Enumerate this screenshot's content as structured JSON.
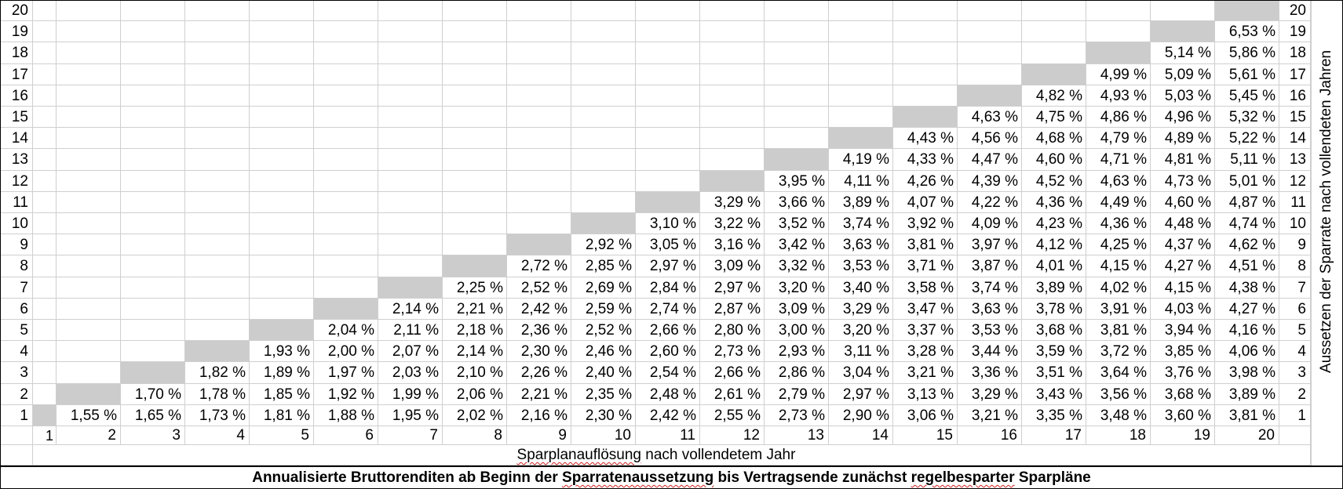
{
  "title_pre": "Annualisierte Bruttorenditen ab Beginn der ",
  "title_w1": "Sparratenaussetzung",
  "title_mid": " bis Vertragsende zunächst ",
  "title_w2": "regelbesparter",
  "title_post": " Sparpläne",
  "xlabel_pre": "",
  "xlabel_w": "Sparplanauflösung",
  "xlabel_post": " nach vollendetem Jahr",
  "ylabel": "Aussetzen der Sparrate nach vollendeten Jahren",
  "x_labels": [
    "1",
    "2",
    "3",
    "4",
    "5",
    "6",
    "7",
    "8",
    "9",
    "10",
    "11",
    "12",
    "13",
    "14",
    "15",
    "16",
    "17",
    "18",
    "19",
    "20"
  ],
  "row_labels": [
    "20",
    "19",
    "18",
    "17",
    "16",
    "15",
    "14",
    "13",
    "12",
    "11",
    "10",
    "9",
    "8",
    "7",
    "6",
    "5",
    "4",
    "3",
    "2",
    "1"
  ],
  "diagonal_color": "#cccccc",
  "rows": [
    {
      "row": "20",
      "values": []
    },
    {
      "row": "19",
      "values": [
        "6,53 %"
      ]
    },
    {
      "row": "18",
      "values": [
        "5,14 %",
        "5,86 %"
      ]
    },
    {
      "row": "17",
      "values": [
        "4,99 %",
        "5,09 %",
        "5,61 %"
      ]
    },
    {
      "row": "16",
      "values": [
        "4,82 %",
        "4,93 %",
        "5,03 %",
        "5,45 %"
      ]
    },
    {
      "row": "15",
      "values": [
        "4,63 %",
        "4,75 %",
        "4,86 %",
        "4,96 %",
        "5,32 %"
      ]
    },
    {
      "row": "14",
      "values": [
        "4,43 %",
        "4,56 %",
        "4,68 %",
        "4,79 %",
        "4,89 %",
        "5,22 %"
      ]
    },
    {
      "row": "13",
      "values": [
        "4,19 %",
        "4,33 %",
        "4,47 %",
        "4,60 %",
        "4,71 %",
        "4,81 %",
        "5,11 %"
      ]
    },
    {
      "row": "12",
      "values": [
        "3,95 %",
        "4,11 %",
        "4,26 %",
        "4,39 %",
        "4,52 %",
        "4,63 %",
        "4,73 %",
        "5,01 %"
      ]
    },
    {
      "row": "11",
      "values": [
        "3,29 %",
        "3,66 %",
        "3,89 %",
        "4,07 %",
        "4,22 %",
        "4,36 %",
        "4,49 %",
        "4,60 %",
        "4,87 %"
      ]
    },
    {
      "row": "10",
      "values": [
        "3,10 %",
        "3,22 %",
        "3,52 %",
        "3,74 %",
        "3,92 %",
        "4,09 %",
        "4,23 %",
        "4,36 %",
        "4,48 %",
        "4,74 %"
      ]
    },
    {
      "row": "9",
      "values": [
        "2,92 %",
        "3,05 %",
        "3,16 %",
        "3,42 %",
        "3,63 %",
        "3,81 %",
        "3,97 %",
        "4,12 %",
        "4,25 %",
        "4,37 %",
        "4,62 %"
      ]
    },
    {
      "row": "8",
      "values": [
        "2,72 %",
        "2,85 %",
        "2,97 %",
        "3,09 %",
        "3,32 %",
        "3,53 %",
        "3,71 %",
        "3,87 %",
        "4,01 %",
        "4,15 %",
        "4,27 %",
        "4,51 %"
      ]
    },
    {
      "row": "7",
      "values": [
        "2,25 %",
        "2,52 %",
        "2,69 %",
        "2,84 %",
        "2,97 %",
        "3,20 %",
        "3,40 %",
        "3,58 %",
        "3,74 %",
        "3,89 %",
        "4,02 %",
        "4,15 %",
        "4,38 %"
      ]
    },
    {
      "row": "6",
      "values": [
        "2,14 %",
        "2,21 %",
        "2,42 %",
        "2,59 %",
        "2,74 %",
        "2,87 %",
        "3,09 %",
        "3,29 %",
        "3,47 %",
        "3,63 %",
        "3,78 %",
        "3,91 %",
        "4,03 %",
        "4,27 %"
      ]
    },
    {
      "row": "5",
      "values": [
        "2,04 %",
        "2,11 %",
        "2,18 %",
        "2,36 %",
        "2,52 %",
        "2,66 %",
        "2,80 %",
        "3,00 %",
        "3,20 %",
        "3,37 %",
        "3,53 %",
        "3,68 %",
        "3,81 %",
        "3,94 %",
        "4,16 %"
      ]
    },
    {
      "row": "4",
      "values": [
        "1,93 %",
        "2,00 %",
        "2,07 %",
        "2,14 %",
        "2,30 %",
        "2,46 %",
        "2,60 %",
        "2,73 %",
        "2,93 %",
        "3,11 %",
        "3,28 %",
        "3,44 %",
        "3,59 %",
        "3,72 %",
        "3,85 %",
        "4,06 %"
      ]
    },
    {
      "row": "3",
      "values": [
        "1,82 %",
        "1,89 %",
        "1,97 %",
        "2,03 %",
        "2,10 %",
        "2,26 %",
        "2,40 %",
        "2,54 %",
        "2,66 %",
        "2,86 %",
        "3,04 %",
        "3,21 %",
        "3,36 %",
        "3,51 %",
        "3,64 %",
        "3,76 %",
        "3,98 %"
      ]
    },
    {
      "row": "2",
      "values": [
        "1,70 %",
        "1,78 %",
        "1,85 %",
        "1,92 %",
        "1,99 %",
        "2,06 %",
        "2,21 %",
        "2,35 %",
        "2,48 %",
        "2,61 %",
        "2,79 %",
        "2,97 %",
        "3,13 %",
        "3,29 %",
        "3,43 %",
        "3,56 %",
        "3,68 %",
        "3,89 %"
      ]
    },
    {
      "row": "1",
      "values": [
        "1,55 %",
        "1,65 %",
        "1,73 %",
        "1,81 %",
        "1,88 %",
        "1,95 %",
        "2,02 %",
        "2,16 %",
        "2,30 %",
        "2,42 %",
        "2,55 %",
        "2,73 %",
        "2,90 %",
        "3,06 %",
        "3,21 %",
        "3,35 %",
        "3,48 %",
        "3,60 %",
        "3,81 %"
      ]
    }
  ]
}
